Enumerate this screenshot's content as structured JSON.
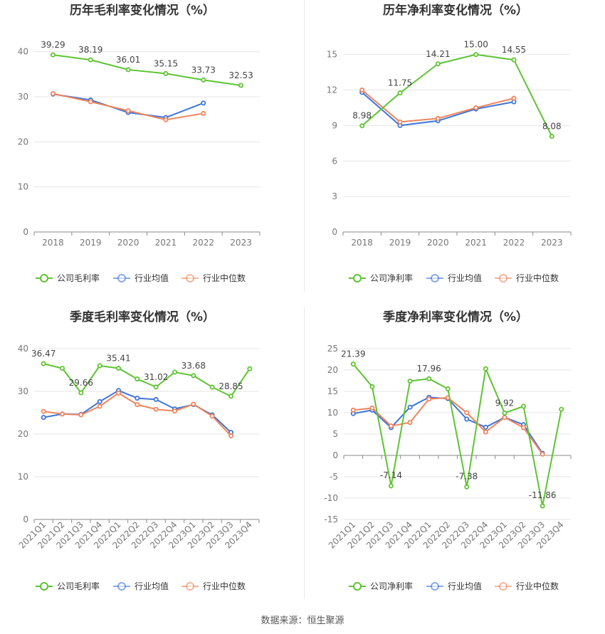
{
  "colors": {
    "company": "#5ec432",
    "avg": "#3f75d9",
    "median": "#f0845c",
    "grid": "#e6e6e6",
    "axis": "#666666"
  },
  "legend": {
    "company_gross": "公司毛利率",
    "company_net": "公司净利率",
    "avg": "行业均值",
    "median": "行业中位数"
  },
  "source": "数据来源：恒生聚源",
  "chart_data": [
    {
      "type": "line",
      "title": "历年毛利率变化情况（%）",
      "categories": [
        "2018",
        "2019",
        "2020",
        "2021",
        "2022",
        "2023"
      ],
      "yticks": [
        0,
        10,
        20,
        30,
        40
      ],
      "ylim": [
        0,
        42
      ],
      "legend_position": "bottom",
      "series": [
        {
          "name": "公司毛利率",
          "key": "company",
          "values": [
            39.29,
            38.19,
            36.01,
            35.15,
            33.73,
            32.53
          ],
          "labels": [
            "39.29",
            "38.19",
            "36.01",
            "35.15",
            "33.73",
            "32.53"
          ]
        },
        {
          "name": "行业均值",
          "key": "avg",
          "values": [
            30.6,
            29.3,
            26.5,
            25.4,
            28.6,
            null
          ]
        },
        {
          "name": "行业中位数",
          "key": "median",
          "values": [
            30.7,
            28.9,
            26.9,
            24.9,
            26.3,
            null
          ]
        }
      ]
    },
    {
      "type": "line",
      "title": "历年净利率变化情况（%）",
      "categories": [
        "2018",
        "2019",
        "2020",
        "2021",
        "2022",
        "2023"
      ],
      "yticks": [
        0,
        3,
        6,
        9,
        12,
        15
      ],
      "ylim": [
        0,
        16
      ],
      "legend_position": "bottom",
      "series": [
        {
          "name": "公司净利率",
          "key": "company",
          "values": [
            8.98,
            11.75,
            14.21,
            15.0,
            14.55,
            8.08
          ],
          "labels": [
            "8.98",
            "11.75",
            "14.21",
            "15.00",
            "14.55",
            "8.08"
          ]
        },
        {
          "name": "行业均值",
          "key": "avg",
          "values": [
            11.8,
            9.0,
            9.4,
            10.4,
            11.0,
            null
          ]
        },
        {
          "name": "行业中位数",
          "key": "median",
          "values": [
            12.0,
            9.3,
            9.6,
            10.5,
            11.3,
            null
          ]
        }
      ]
    },
    {
      "type": "line",
      "title": "季度毛利率变化情况（%）",
      "categories": [
        "2021Q1",
        "2021Q2",
        "2021Q3",
        "2021Q4",
        "2022Q1",
        "2022Q2",
        "2022Q3",
        "2022Q4",
        "2023Q1",
        "2023Q2",
        "2023Q3",
        "2023Q4"
      ],
      "yticks": [
        0,
        10,
        20,
        30,
        40
      ],
      "ylim": [
        0,
        40
      ],
      "legend_position": "bottom",
      "series": [
        {
          "name": "公司毛利率",
          "key": "company",
          "values": [
            36.47,
            35.4,
            29.66,
            36.0,
            35.41,
            32.9,
            31.02,
            34.5,
            33.68,
            31.0,
            28.85,
            35.3
          ],
          "labels": [
            "36.47",
            "",
            "29.66",
            "",
            "35.41",
            "",
            "31.02",
            "",
            "33.68",
            "",
            "28.85",
            ""
          ]
        },
        {
          "name": "行业均值",
          "key": "avg",
          "values": [
            23.9,
            24.7,
            24.6,
            27.6,
            30.2,
            28.4,
            28.1,
            25.9,
            26.9,
            24.5,
            20.4,
            null
          ]
        },
        {
          "name": "行业中位数",
          "key": "median",
          "values": [
            25.3,
            24.7,
            24.5,
            26.5,
            29.6,
            26.9,
            25.8,
            25.4,
            27.0,
            24.2,
            19.6,
            null
          ]
        }
      ]
    },
    {
      "type": "line",
      "title": "季度净利率变化情况（%）",
      "categories": [
        "2021Q1",
        "2021Q2",
        "2021Q3",
        "2021Q4",
        "2022Q1",
        "2022Q2",
        "2022Q3",
        "2022Q4",
        "2023Q1",
        "2023Q2",
        "2023Q3",
        "2023Q4"
      ],
      "yticks": [
        -15,
        -10,
        -5,
        0,
        5,
        10,
        15,
        20,
        25
      ],
      "ylim": [
        -15,
        25
      ],
      "legend_position": "bottom",
      "series": [
        {
          "name": "公司净利率",
          "key": "company",
          "values": [
            21.39,
            16.1,
            -7.14,
            17.4,
            17.96,
            15.6,
            -7.38,
            20.3,
            9.92,
            11.5,
            -11.86,
            10.8
          ],
          "labels": [
            "21.39",
            "",
            "-7.14",
            "",
            "17.96",
            "",
            "-7.38",
            "",
            "9.92",
            "",
            "-11.86",
            ""
          ]
        },
        {
          "name": "行业均值",
          "key": "avg",
          "values": [
            9.8,
            10.6,
            6.5,
            11.3,
            13.6,
            13.3,
            8.5,
            6.6,
            8.9,
            7.2,
            0.5,
            null
          ]
        },
        {
          "name": "行业中位数",
          "key": "median",
          "values": [
            10.6,
            11.1,
            6.9,
            7.7,
            13.2,
            13.5,
            10.0,
            5.5,
            8.9,
            6.5,
            0.3,
            null
          ]
        }
      ]
    }
  ]
}
